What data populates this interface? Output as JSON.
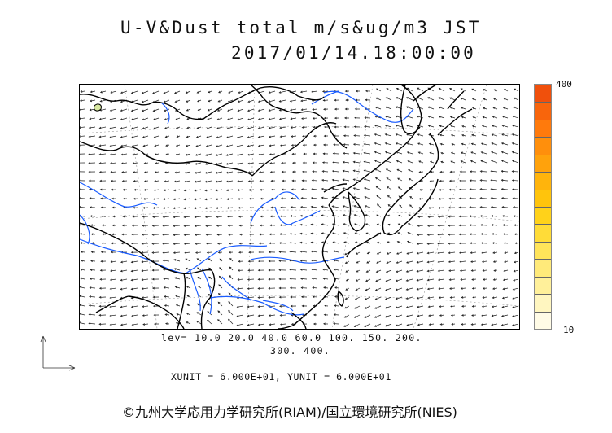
{
  "title": {
    "line1": "U-V&Dust total m/s&ug/m3 JST",
    "line2": "2017/01/14.18:00:00"
  },
  "legend": {
    "max_label": "400",
    "min_label": "10",
    "colors": [
      "#fffbe6",
      "#fff6c0",
      "#fff09a",
      "#ffea7a",
      "#ffe45a",
      "#ffdc38",
      "#ffd21a",
      "#ffc40c",
      "#ffb40c",
      "#ffa20c",
      "#ff8f0c",
      "#ff7a0c",
      "#f8650c",
      "#f0500c"
    ]
  },
  "levels": {
    "line1": "lev= 10.0 20.0 40.0 60.0 100. 150. 200.",
    "line2": "300. 400."
  },
  "units": "XUNIT = 6.000E+01, YUNIT = 6.000E+01",
  "credit": "©九州大学応用力学研究所(RIAM)/国立環境研究所(NIES)",
  "map": {
    "coast_color": "#000000",
    "river_color": "#1a5cff",
    "arrow_color": "#222222"
  }
}
